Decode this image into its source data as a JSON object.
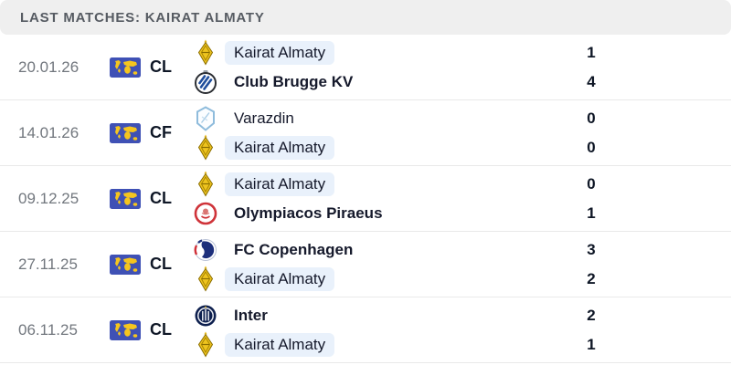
{
  "header": {
    "title": "LAST MATCHES: KAIRAT ALMATY"
  },
  "colors": {
    "header_bg": "#efefef",
    "header_text": "#565b62",
    "row_divider": "#e9e9e9",
    "highlight_chip_bg": "#e9f1fb",
    "team_text": "#15192b",
    "date_text": "#72777e",
    "flag_blue": "#3f51b5",
    "flag_map_yellow": "#f5c51e"
  },
  "matches": [
    {
      "date": "20.01.26",
      "flag": "world-flag-icon",
      "competition": "CL",
      "home": {
        "name": "Kairat Almaty",
        "score": "1",
        "logo": "kairat-almaty-logo",
        "bold": false,
        "highlight": true
      },
      "away": {
        "name": "Club Brugge KV",
        "score": "4",
        "logo": "club-brugge-logo",
        "bold": true,
        "highlight": false
      }
    },
    {
      "date": "14.01.26",
      "flag": "world-flag-icon",
      "competition": "CF",
      "home": {
        "name": "Varazdin",
        "score": "0",
        "logo": "varazdin-logo",
        "bold": false,
        "highlight": false
      },
      "away": {
        "name": "Kairat Almaty",
        "score": "0",
        "logo": "kairat-almaty-logo",
        "bold": false,
        "highlight": true
      }
    },
    {
      "date": "09.12.25",
      "flag": "world-flag-icon",
      "competition": "CL",
      "home": {
        "name": "Kairat Almaty",
        "score": "0",
        "logo": "kairat-almaty-logo",
        "bold": false,
        "highlight": true
      },
      "away": {
        "name": "Olympiacos Piraeus",
        "score": "1",
        "logo": "olympiacos-logo",
        "bold": true,
        "highlight": false
      }
    },
    {
      "date": "27.11.25",
      "flag": "world-flag-icon",
      "competition": "CL",
      "home": {
        "name": "FC Copenhagen",
        "score": "3",
        "logo": "fc-copenhagen-logo",
        "bold": true,
        "highlight": false
      },
      "away": {
        "name": "Kairat Almaty",
        "score": "2",
        "logo": "kairat-almaty-logo",
        "bold": false,
        "highlight": true
      }
    },
    {
      "date": "06.11.25",
      "flag": "world-flag-icon",
      "competition": "CL",
      "home": {
        "name": "Inter",
        "score": "2",
        "logo": "inter-logo",
        "bold": true,
        "highlight": false
      },
      "away": {
        "name": "Kairat Almaty",
        "score": "1",
        "logo": "kairat-almaty-logo",
        "bold": false,
        "highlight": true
      }
    }
  ]
}
